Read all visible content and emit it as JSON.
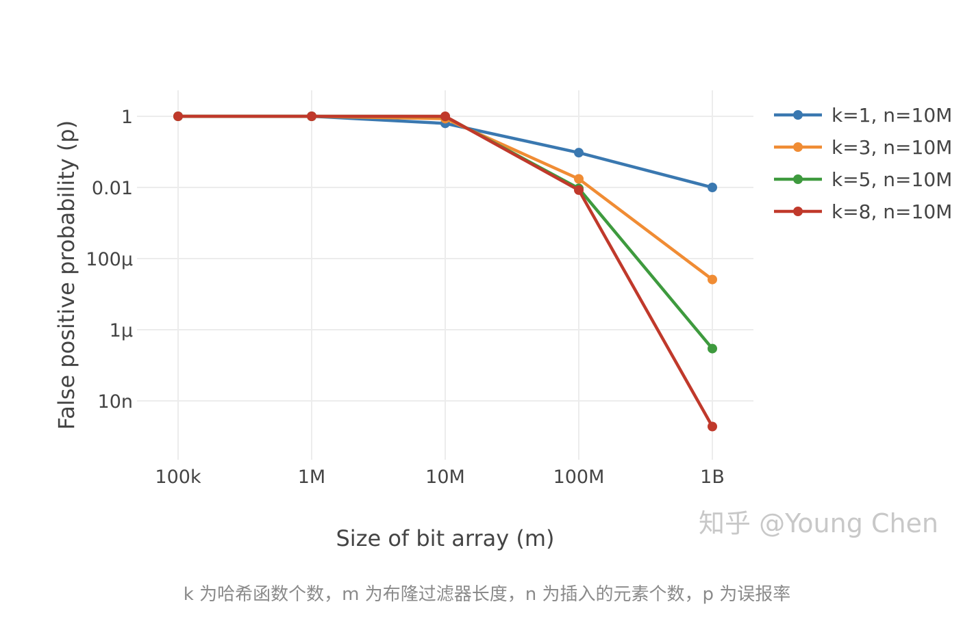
{
  "chart_data": {
    "type": "line",
    "xlabel": "Size of bit array (m)",
    "ylabel": "False positive probability (p)",
    "x_scale": "log",
    "y_scale": "log",
    "x": [
      100000,
      1000000,
      10000000,
      100000000,
      1000000000
    ],
    "x_tick_labels": [
      "100k",
      "1M",
      "10M",
      "100M",
      "1B"
    ],
    "y_ticks": [
      1,
      0.01,
      0.0001,
      1e-06,
      1e-08
    ],
    "y_tick_labels": [
      "1",
      "0.01",
      "100μ",
      "1μ",
      "10n"
    ],
    "ylim": [
      1e-09,
      1.6
    ],
    "grid": true,
    "legend_position": "top-right",
    "series": [
      {
        "name": "k=1, n=10M",
        "color": "#3a78b0",
        "values": [
          1.0,
          1.0,
          0.632,
          0.095,
          0.01
        ]
      },
      {
        "name": "k=3, n=10M",
        "color": "#f08c34",
        "values": [
          1.0,
          1.0,
          0.857,
          0.0174,
          2.58e-05
        ]
      },
      {
        "name": "k=5, n=10M",
        "color": "#3e9a3e",
        "values": [
          1.0,
          1.0,
          0.99,
          0.0094,
          2.95e-07
        ]
      },
      {
        "name": "k=8, n=10M",
        "color": "#c0392b",
        "values": [
          1.0,
          1.0,
          1.0,
          0.0084,
          1.9e-09
        ]
      }
    ]
  },
  "watermark": "知乎 @Young Chen",
  "caption": "k 为哈希函数个数，m 为布隆过滤器长度，n 为插入的元素个数，p 为误报率"
}
